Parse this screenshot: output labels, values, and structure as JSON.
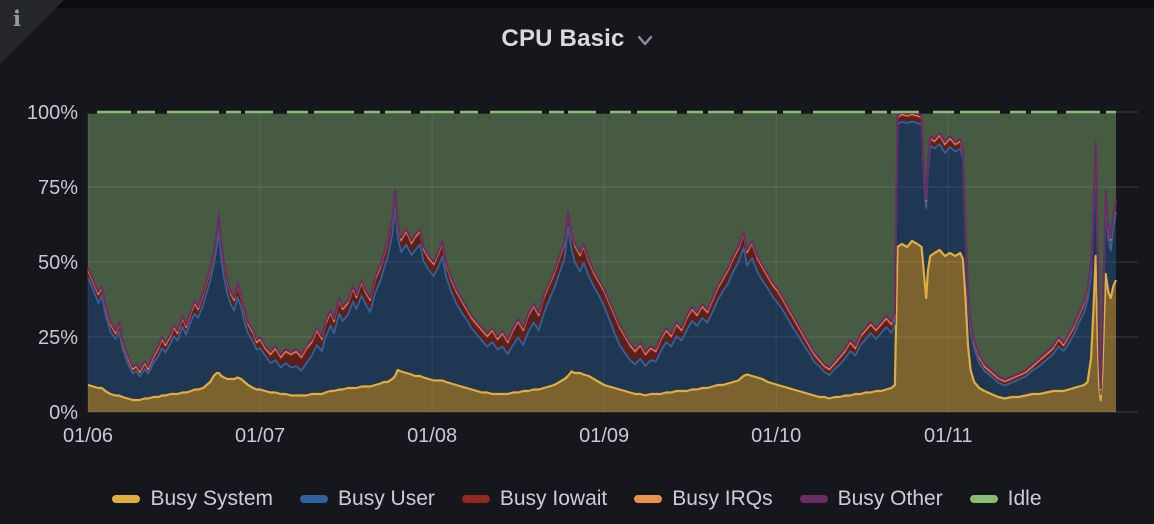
{
  "panel": {
    "title": "CPU Basic",
    "info_icon": "i"
  },
  "chart_data": {
    "type": "area",
    "stacked": true,
    "unit": "percent",
    "ylim": [
      0,
      100
    ],
    "grid": true,
    "legend_position": "bottom",
    "yticks": [
      {
        "v": 0,
        "label": "0%"
      },
      {
        "v": 25,
        "label": "25%"
      },
      {
        "v": 50,
        "label": "50%"
      },
      {
        "v": 75,
        "label": "75%"
      },
      {
        "v": 100,
        "label": "100%"
      }
    ],
    "xticks": [
      {
        "d": 0,
        "label": "01/06"
      },
      {
        "d": 1,
        "label": "01/07"
      },
      {
        "d": 2,
        "label": "01/08"
      },
      {
        "d": 3,
        "label": "01/09"
      },
      {
        "d": 4,
        "label": "01/10"
      },
      {
        "d": 5,
        "label": "01/11"
      }
    ],
    "x_unit": "days since 01/06 00:00",
    "series": [
      {
        "key": "system",
        "name": "Busy System",
        "color": "#E0AE40"
      },
      {
        "key": "user",
        "name": "Busy User",
        "color": "#2E639E"
      },
      {
        "key": "iowait",
        "name": "Busy Iowait",
        "color": "#93291E"
      },
      {
        "key": "irqs",
        "name": "Busy IRQs",
        "color": "#E8924A"
      },
      {
        "key": "other",
        "name": "Busy Other",
        "color": "#6B2C64"
      },
      {
        "key": "idle",
        "name": "Idle",
        "color": "#8ABB74"
      }
    ],
    "irqs_approx_pct": 0.4,
    "other_approx_pct": 0.8,
    "idle_rule": "idle = 100 - (system+user+iowait+irqs+other)",
    "points_format": [
      "day",
      "system_pct",
      "user_pct",
      "iowait_pct"
    ],
    "points": [
      [
        0,
        9,
        35.8,
        2
      ],
      [
        0.03,
        8.5,
        32.3,
        2
      ],
      [
        0.06,
        8,
        28.3,
        2.5
      ],
      [
        0.08,
        8,
        30.8,
        2
      ],
      [
        0.1,
        7,
        25.8,
        2
      ],
      [
        0.13,
        6,
        20.8,
        2
      ],
      [
        0.16,
        5.5,
        18.8,
        1.5
      ],
      [
        0.18,
        5.5,
        21.3,
        2
      ],
      [
        0.2,
        5,
        16.3,
        1.5
      ],
      [
        0.23,
        4.5,
        11.8,
        1.5
      ],
      [
        0.26,
        4,
        8.8,
        1
      ],
      [
        0.28,
        4,
        9.6,
        1.2
      ],
      [
        0.3,
        4,
        7.8,
        1
      ],
      [
        0.33,
        4.5,
        9.8,
        1.5
      ],
      [
        0.35,
        4.5,
        8.3,
        1
      ],
      [
        0.38,
        5,
        11.3,
        1.5
      ],
      [
        0.41,
        5,
        13.8,
        2
      ],
      [
        0.43,
        5.5,
        15.8,
        2.5
      ],
      [
        0.45,
        5.5,
        14.3,
        2
      ],
      [
        0.48,
        6,
        16.8,
        2
      ],
      [
        0.5,
        6,
        19.3,
        2.5
      ],
      [
        0.52,
        6,
        17.8,
        2
      ],
      [
        0.55,
        6.5,
        21.8,
        2.5
      ],
      [
        0.57,
        6.5,
        19.3,
        2
      ],
      [
        0.6,
        7,
        23.3,
        2.5
      ],
      [
        0.62,
        7.5,
        25.3,
        3
      ],
      [
        0.64,
        7.5,
        23.8,
        2.5
      ],
      [
        0.67,
        8,
        27.8,
        3
      ],
      [
        0.69,
        9,
        30.8,
        3
      ],
      [
        0.71,
        10,
        33.8,
        3
      ],
      [
        0.73,
        12,
        36.8,
        3
      ],
      [
        0.75,
        13,
        42.3,
        3.5
      ],
      [
        0.76,
        13,
        47.8,
        4
      ],
      [
        0.775,
        12,
        38.8,
        4
      ],
      [
        0.79,
        11.5,
        33.3,
        4
      ],
      [
        0.81,
        11,
        28.3,
        3.5
      ],
      [
        0.83,
        11,
        24.8,
        3
      ],
      [
        0.85,
        11,
        22.8,
        3
      ],
      [
        0.87,
        11.5,
        26.8,
        3.5
      ],
      [
        0.89,
        11,
        23.8,
        3
      ],
      [
        0.91,
        10,
        19.8,
        3
      ],
      [
        0.93,
        9,
        17.3,
        2.5
      ],
      [
        0.96,
        8,
        15.3,
        2.5
      ],
      [
        0.98,
        7.5,
        13.3,
        2
      ],
      [
        1,
        7.5,
        13.8,
        2.5
      ],
      [
        1.03,
        7,
        11.8,
        2
      ],
      [
        1.06,
        6.5,
        9.8,
        2.5
      ],
      [
        1.09,
        6.5,
        10.8,
        3.5
      ],
      [
        1.12,
        6,
        8.8,
        3
      ],
      [
        1.15,
        6,
        10.3,
        3.5
      ],
      [
        1.18,
        5.5,
        9.3,
        4
      ],
      [
        1.21,
        5.5,
        9.8,
        4.5
      ],
      [
        1.24,
        5.5,
        8.3,
        4
      ],
      [
        1.27,
        5.5,
        10.8,
        4.5
      ],
      [
        1.3,
        6,
        12.8,
        4
      ],
      [
        1.33,
        6,
        16.3,
        4.5
      ],
      [
        1.36,
        6,
        14.3,
        3.5
      ],
      [
        1.38,
        6.5,
        18.3,
        4
      ],
      [
        1.41,
        7,
        21.8,
        4
      ],
      [
        1.43,
        7,
        19.3,
        3.5
      ],
      [
        1.46,
        7.5,
        25.3,
        4
      ],
      [
        1.48,
        7.5,
        22.8,
        3.5
      ],
      [
        1.51,
        8,
        24.3,
        3.5
      ],
      [
        1.54,
        8,
        28.8,
        4
      ],
      [
        1.56,
        8,
        26.3,
        3.5
      ],
      [
        1.59,
        8.5,
        30.3,
        4
      ],
      [
        1.61,
        8.5,
        27.8,
        3.5
      ],
      [
        1.64,
        8.5,
        24.8,
        3.5
      ],
      [
        1.67,
        9,
        30.8,
        4
      ],
      [
        1.7,
        9.5,
        34.3,
        4
      ],
      [
        1.72,
        10,
        37.8,
        4
      ],
      [
        1.74,
        10,
        41.3,
        4.5
      ],
      [
        1.77,
        11,
        48.3,
        4.5
      ],
      [
        1.785,
        12,
        56.8,
        4
      ],
      [
        1.8,
        14,
        44.3,
        3.5
      ],
      [
        1.82,
        13.5,
        39.8,
        3.5
      ],
      [
        1.85,
        13,
        42.8,
        4
      ],
      [
        1.88,
        12.5,
        39.8,
        3.5
      ],
      [
        1.9,
        12,
        41.8,
        4
      ],
      [
        1.93,
        12,
        43.8,
        4
      ],
      [
        1.95,
        11.5,
        38.8,
        3.5
      ],
      [
        1.98,
        11,
        36.3,
        3.5
      ],
      [
        2.01,
        10.5,
        34.8,
        3.5
      ],
      [
        2.04,
        10.5,
        38.3,
        4
      ],
      [
        2.06,
        10.5,
        41.3,
        4
      ],
      [
        2.08,
        10,
        35.3,
        3.5
      ],
      [
        2.11,
        9.5,
        30.8,
        3.5
      ],
      [
        2.14,
        9,
        27.3,
        3.5
      ],
      [
        2.17,
        8.5,
        24.8,
        3.5
      ],
      [
        2.2,
        8,
        22.8,
        3
      ],
      [
        2.23,
        7.5,
        20.3,
        3
      ],
      [
        2.26,
        7,
        18.8,
        3
      ],
      [
        2.29,
        6.5,
        17.3,
        3
      ],
      [
        2.32,
        6.5,
        15.3,
        3
      ],
      [
        2.35,
        6,
        17.3,
        3.5
      ],
      [
        2.38,
        6,
        14.8,
        3
      ],
      [
        2.41,
        6,
        15.8,
        4
      ],
      [
        2.44,
        6,
        13.3,
        3.5
      ],
      [
        2.47,
        6.5,
        15.8,
        4.5
      ],
      [
        2.5,
        6.5,
        18.3,
        5
      ],
      [
        2.53,
        7,
        15.3,
        4.5
      ],
      [
        2.56,
        7,
        19.8,
        5
      ],
      [
        2.59,
        7.5,
        22.3,
        5
      ],
      [
        2.62,
        7.5,
        19.8,
        4.5
      ],
      [
        2.65,
        8,
        24.8,
        5
      ],
      [
        2.68,
        8.5,
        28.8,
        4.5
      ],
      [
        2.71,
        9,
        32.3,
        4.5
      ],
      [
        2.74,
        10,
        36.3,
        4.5
      ],
      [
        2.77,
        11,
        40.3,
        4.5
      ],
      [
        2.79,
        12,
        49.8,
        4
      ],
      [
        2.81,
        13.5,
        40.8,
        4.5
      ],
      [
        2.83,
        13,
        36.8,
        5
      ],
      [
        2.86,
        13,
        33.8,
        5
      ],
      [
        2.88,
        12.5,
        37.3,
        5
      ],
      [
        2.91,
        12,
        33.3,
        4.5
      ],
      [
        2.94,
        11,
        30.8,
        4
      ],
      [
        2.97,
        10,
        28.8,
        4
      ],
      [
        3,
        9,
        26.3,
        4.5
      ],
      [
        3.03,
        8.5,
        22.3,
        5
      ],
      [
        3.06,
        8,
        18.3,
        5.5
      ],
      [
        3.09,
        7.5,
        14.8,
        5.5
      ],
      [
        3.12,
        7,
        12.8,
        5
      ],
      [
        3.15,
        6.5,
        10.8,
        4.5
      ],
      [
        3.18,
        6,
        9.8,
        4
      ],
      [
        3.21,
        6,
        11.8,
        4
      ],
      [
        3.24,
        5.5,
        9.8,
        3.5
      ],
      [
        3.27,
        6,
        11.3,
        3.5
      ],
      [
        3.3,
        6,
        10.8,
        3
      ],
      [
        3.33,
        6,
        14.3,
        3.5
      ],
      [
        3.36,
        6.5,
        16.8,
        3.5
      ],
      [
        3.39,
        6.5,
        15.3,
        3
      ],
      [
        3.42,
        7,
        18.3,
        3.5
      ],
      [
        3.45,
        7,
        16.8,
        3
      ],
      [
        3.48,
        7,
        20.3,
        3.5
      ],
      [
        3.51,
        7.5,
        22.8,
        3.5
      ],
      [
        3.54,
        7.5,
        21.3,
        3
      ],
      [
        3.57,
        8,
        23.3,
        3.5
      ],
      [
        3.6,
        8,
        21.8,
        3
      ],
      [
        3.63,
        8.5,
        24.8,
        3.5
      ],
      [
        3.66,
        9,
        28.3,
        3.5
      ],
      [
        3.69,
        9,
        31.3,
        3.5
      ],
      [
        3.72,
        9.5,
        33.3,
        4
      ],
      [
        3.75,
        10,
        36.8,
        4
      ],
      [
        3.78,
        10.5,
        39.3,
        4
      ],
      [
        3.81,
        12,
        42.8,
        4
      ],
      [
        3.83,
        12.5,
        36.3,
        4
      ],
      [
        3.86,
        12,
        39.3,
        4.5
      ],
      [
        3.89,
        11.5,
        35.3,
        4
      ],
      [
        3.92,
        11,
        32.8,
        4
      ],
      [
        3.95,
        10,
        31.3,
        3.5
      ],
      [
        3.98,
        9.5,
        28.8,
        3.5
      ],
      [
        4.01,
        9,
        27.3,
        3.5
      ],
      [
        4.04,
        8.5,
        25.3,
        3
      ],
      [
        4.07,
        8,
        22.8,
        3
      ],
      [
        4.1,
        7.5,
        20.3,
        3
      ],
      [
        4.13,
        7,
        18.3,
        2.5
      ],
      [
        4.16,
        6.5,
        15.8,
        2.5
      ],
      [
        4.19,
        6,
        13.8,
        2
      ],
      [
        4.22,
        5.5,
        11.3,
        2
      ],
      [
        4.25,
        5,
        10.3,
        1.5
      ],
      [
        4.28,
        5,
        8.3,
        1.5
      ],
      [
        4.31,
        4.5,
        7.8,
        1.5
      ],
      [
        4.34,
        5,
        9.3,
        1.5
      ],
      [
        4.37,
        5,
        10.8,
        2
      ],
      [
        4.4,
        5.5,
        12.3,
        2
      ],
      [
        4.43,
        5.5,
        14.8,
        2.5
      ],
      [
        4.46,
        6,
        12.8,
        2
      ],
      [
        4.49,
        6,
        16.3,
        2.5
      ],
      [
        4.52,
        6.5,
        17.8,
        2.5
      ],
      [
        4.55,
        6.5,
        19.8,
        2.5
      ],
      [
        4.58,
        7,
        17.3,
        2.5
      ],
      [
        4.61,
        7,
        19.3,
        2.5
      ],
      [
        4.64,
        7.5,
        20.8,
        2.5
      ],
      [
        4.67,
        8,
        18.3,
        2.5
      ],
      [
        4.69,
        9,
        20.3,
        2.5
      ],
      [
        4.705,
        55,
        40.8,
        2
      ],
      [
        4.73,
        56,
        40.8,
        2
      ],
      [
        4.76,
        55,
        41.3,
        2
      ],
      [
        4.79,
        57,
        39.8,
        2
      ],
      [
        4.82,
        56,
        40.3,
        2
      ],
      [
        4.845,
        55,
        40.8,
        2
      ],
      [
        4.862,
        44,
        30.8,
        2
      ],
      [
        4.872,
        38,
        29.8,
        2
      ],
      [
        4.882,
        47,
        33.8,
        2
      ],
      [
        4.895,
        52,
        36.8,
        2
      ],
      [
        4.92,
        53,
        34.8,
        2
      ],
      [
        4.95,
        54,
        35.3,
        2.5
      ],
      [
        4.98,
        52,
        34.3,
        2.5
      ],
      [
        5.01,
        53,
        35.3,
        2.5
      ],
      [
        5.04,
        52,
        34.8,
        2
      ],
      [
        5.07,
        53,
        34.8,
        2
      ],
      [
        5.085,
        51,
        33.8,
        2
      ],
      [
        5.1,
        38,
        20.8,
        2
      ],
      [
        5.115,
        22,
        14.8,
        2
      ],
      [
        5.13,
        14,
        12.8,
        2
      ],
      [
        5.15,
        10,
        11.3,
        1.5
      ],
      [
        5.18,
        8,
        8.3,
        1.5
      ],
      [
        5.21,
        7,
        6.8,
        1
      ],
      [
        5.25,
        6,
        5.8,
        1
      ],
      [
        5.29,
        5,
        4.8,
        1
      ],
      [
        5.33,
        4.5,
        4.3,
        1
      ],
      [
        5.37,
        5,
        4.8,
        1
      ],
      [
        5.41,
        5,
        5.8,
        1
      ],
      [
        5.45,
        5.5,
        6.3,
        1
      ],
      [
        5.49,
        6,
        7.8,
        1
      ],
      [
        5.53,
        6,
        9.3,
        1.5
      ],
      [
        5.57,
        6.5,
        10.8,
        1.5
      ],
      [
        5.61,
        7,
        12.3,
        1.5
      ],
      [
        5.64,
        7,
        14.8,
        2
      ],
      [
        5.67,
        7,
        13.3,
        1.5
      ],
      [
        5.7,
        7.5,
        15.3,
        2
      ],
      [
        5.73,
        8,
        17.8,
        2
      ],
      [
        5.76,
        8.5,
        21.3,
        2
      ],
      [
        5.79,
        9,
        24.3,
        2.5
      ],
      [
        5.81,
        10,
        27.3,
        2.5
      ],
      [
        5.83,
        18,
        27.8,
        3
      ],
      [
        5.845,
        35,
        30.8,
        3
      ],
      [
        5.857,
        52,
        33.8,
        3
      ],
      [
        5.868,
        25,
        25.8,
        3
      ],
      [
        5.878,
        8,
        8.8,
        2
      ],
      [
        5.886,
        4,
        1.8,
        1
      ],
      [
        5.895,
        12,
        9.8,
        2
      ],
      [
        5.905,
        30,
        15.8,
        3
      ],
      [
        5.915,
        46,
        23.8,
        3
      ],
      [
        5.93,
        40,
        17.8,
        3
      ],
      [
        5.945,
        38,
        15.8,
        3
      ],
      [
        5.96,
        42,
        19.8,
        3
      ],
      [
        5.975,
        44,
        22.8,
        3
      ]
    ]
  }
}
